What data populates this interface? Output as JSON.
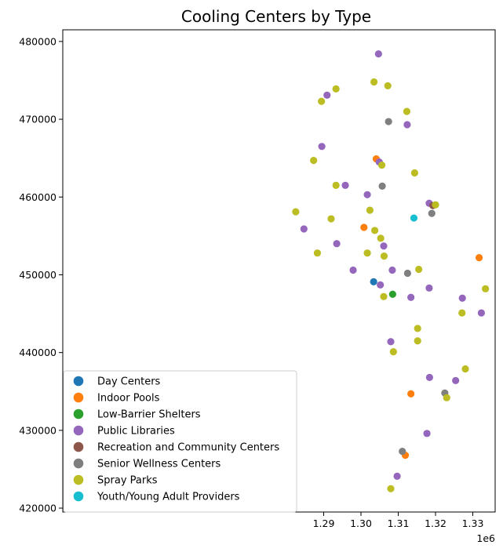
{
  "chart_data": {
    "type": "scatter",
    "title": "Cooling Centers by Type",
    "xlabel": "",
    "ylabel": "",
    "x_offset_label": "1e6",
    "xlim": [
      1.22,
      1.336
    ],
    "ylim": [
      419500,
      481500
    ],
    "xticks": [
      1.29,
      1.3,
      1.31,
      1.32,
      1.33
    ],
    "xtick_labels": [
      "1.29",
      "1.30",
      "1.31",
      "1.32",
      "1.33"
    ],
    "yticks": [
      420000,
      430000,
      440000,
      450000,
      460000,
      470000,
      480000
    ],
    "ytick_labels": [
      "420000",
      "430000",
      "440000",
      "450000",
      "460000",
      "470000",
      "480000"
    ],
    "grid": false,
    "legend_position": "lower-left",
    "series": [
      {
        "name": "Day Centers",
        "color": "#1f77b4",
        "points": [
          [
            1.3034,
            449100
          ]
        ]
      },
      {
        "name": "Indoor Pools",
        "color": "#ff7f0e",
        "points": [
          [
            1.3008,
            456100
          ],
          [
            1.3041,
            464900
          ],
          [
            1.3134,
            434700
          ],
          [
            1.3119,
            426800
          ],
          [
            1.3317,
            452200
          ]
        ]
      },
      {
        "name": "Low-Barrier Shelters",
        "color": "#2ca02c",
        "points": [
          [
            1.3085,
            447500
          ]
        ]
      },
      {
        "name": "Public Libraries",
        "color": "#9467bd",
        "points": [
          [
            1.3047,
            478400
          ],
          [
            1.2909,
            473100
          ],
          [
            1.3124,
            469300
          ],
          [
            1.2895,
            466500
          ],
          [
            1.3049,
            464500
          ],
          [
            1.2958,
            461500
          ],
          [
            1.3017,
            460300
          ],
          [
            1.3183,
            459200
          ],
          [
            1.2847,
            455900
          ],
          [
            1.2935,
            454000
          ],
          [
            1.3061,
            453700
          ],
          [
            1.2979,
            450600
          ],
          [
            1.3084,
            450600
          ],
          [
            1.3052,
            448700
          ],
          [
            1.3183,
            448300
          ],
          [
            1.3134,
            447100
          ],
          [
            1.3272,
            447000
          ],
          [
            1.3323,
            445100
          ],
          [
            1.308,
            441400
          ],
          [
            1.3184,
            436800
          ],
          [
            1.3254,
            436400
          ],
          [
            1.3177,
            429600
          ],
          [
            1.3097,
            424100
          ]
        ]
      },
      {
        "name": "Recreation and Community Centers",
        "color": "#8c564b",
        "points": [
          [
            1.3193,
            458900
          ]
        ]
      },
      {
        "name": "Senior Wellness Centers",
        "color": "#7f7f7f",
        "points": [
          [
            1.3074,
            469700
          ],
          [
            1.3057,
            461400
          ],
          [
            1.319,
            457900
          ],
          [
            1.3125,
            450200
          ],
          [
            1.3225,
            434800
          ],
          [
            1.3111,
            427300
          ]
        ]
      },
      {
        "name": "Spray Parks",
        "color": "#bcbd22",
        "points": [
          [
            1.3035,
            474800
          ],
          [
            1.3072,
            474300
          ],
          [
            1.2933,
            473900
          ],
          [
            1.2894,
            472300
          ],
          [
            1.3123,
            471000
          ],
          [
            1.2873,
            464700
          ],
          [
            1.3056,
            464100
          ],
          [
            1.3144,
            463100
          ],
          [
            1.2933,
            461500
          ],
          [
            1.32,
            459000
          ],
          [
            1.2825,
            458100
          ],
          [
            1.3024,
            458300
          ],
          [
            1.292,
            457200
          ],
          [
            1.3037,
            455700
          ],
          [
            1.3053,
            454700
          ],
          [
            1.2883,
            452800
          ],
          [
            1.3017,
            452800
          ],
          [
            1.3062,
            452400
          ],
          [
            1.3155,
            450700
          ],
          [
            1.3061,
            447200
          ],
          [
            1.3334,
            448200
          ],
          [
            1.3271,
            445100
          ],
          [
            1.3152,
            443100
          ],
          [
            1.3152,
            441500
          ],
          [
            1.3087,
            440100
          ],
          [
            1.328,
            437900
          ],
          [
            1.323,
            434200
          ],
          [
            1.308,
            422500
          ]
        ]
      },
      {
        "name": "Youth/Young Adult Providers",
        "color": "#17becf",
        "points": [
          [
            1.3142,
            457300
          ]
        ]
      }
    ]
  }
}
